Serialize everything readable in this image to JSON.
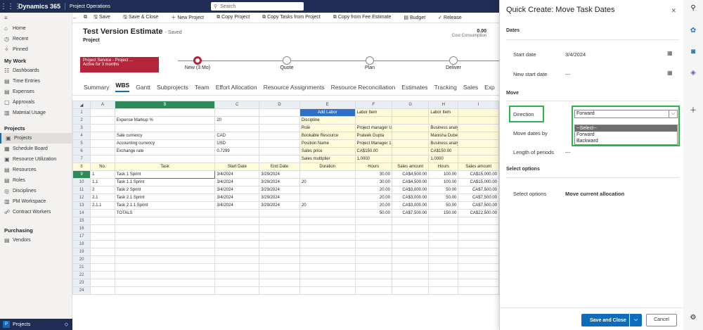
{
  "topbar": {
    "brand": "Dynamics 365",
    "app": "Project Operations",
    "search_placeholder": "Search"
  },
  "sidebar": {
    "top": [
      {
        "label": "Home"
      },
      {
        "label": "Recent"
      },
      {
        "label": "Pinned"
      }
    ],
    "groups": [
      {
        "heading": "My Work",
        "items": [
          "Dashboards",
          "Time Entries",
          "Expenses",
          "Approvals",
          "Material Usage"
        ]
      },
      {
        "heading": "Projects",
        "items": [
          "Projects",
          "Schedule Board",
          "Resource Utilization",
          "Resources",
          "Roles",
          "Disciplines",
          "PM Workspace",
          "Contract Workers"
        ]
      },
      {
        "heading": "Purchasing",
        "items": [
          "Vendors"
        ]
      }
    ],
    "area_switch": "Projects"
  },
  "toolbar": [
    "Save",
    "Save & Close",
    "New Project",
    "Copy Project",
    "Copy Tasks from Project",
    "Copy from Fee Estimate",
    "Budget",
    "Release"
  ],
  "record": {
    "title": "Test Version Estimate",
    "saved": "- Saved",
    "entity": "Project",
    "right_value": "0.00",
    "right_label": "Cost Consumption"
  },
  "bpf": {
    "active_name": "Project Service - Project ...",
    "active_sub": "Active for 3 months",
    "stages": [
      "New (3 Mo)",
      "Quote",
      "Plan",
      "Deliver"
    ]
  },
  "tabs": [
    "Summary",
    "WBS",
    "Gantt",
    "Subprojects",
    "Team",
    "Effort Allocation",
    "Resource Assignments",
    "Resource Reconciliation",
    "Estimates",
    "Tracking",
    "Sales",
    "Exp"
  ],
  "grid": {
    "cols": [
      "A",
      "B",
      "C",
      "D",
      "E",
      "F",
      "G",
      "H",
      "I"
    ],
    "rows": [
      {
        "n": "1",
        "c": [
          "",
          "",
          "",
          "",
          "Add Labor",
          "Labor Item",
          "",
          "Labor Item",
          ""
        ]
      },
      {
        "n": "2",
        "c": [
          "",
          "Expense Markup %",
          "20",
          "",
          "Discipline",
          "",
          "",
          "",
          ""
        ]
      },
      {
        "n": "3",
        "c": [
          "",
          "",
          "",
          "",
          "Role",
          "Project manager USSI",
          "",
          "Business analyst",
          ""
        ]
      },
      {
        "n": "4",
        "c": [
          "",
          "Sale currency",
          "CAD",
          "",
          "Bookable Resource",
          "Prateek Gupta",
          "",
          "Manisha Dubey",
          ""
        ]
      },
      {
        "n": "5",
        "c": [
          "",
          "Accounting currency",
          "USD",
          "",
          "Position Name",
          "Project Manager 1",
          "",
          "Business analyst",
          ""
        ]
      },
      {
        "n": "6",
        "c": [
          "",
          "Exchange rate",
          "0.7299",
          "",
          "Sales price",
          "CA$150.00",
          "",
          "CA$150.00",
          ""
        ]
      },
      {
        "n": "7",
        "c": [
          "",
          "",
          "",
          "",
          "Sales multiplier",
          "1.0000",
          "",
          "1.0000",
          ""
        ]
      },
      {
        "n": "8",
        "c": [
          "No.",
          "Task",
          "Start Date",
          "End Date",
          "Duration",
          "Hours",
          "Sales amount",
          "Hours",
          "Sales amount"
        ]
      },
      {
        "n": "9",
        "c": [
          "1",
          "Task 1 Sprint",
          "3/4/2024",
          "3/29/2024",
          "",
          "30.00",
          "CA$4,500.00",
          "100.00",
          "CA$15,000.00"
        ]
      },
      {
        "n": "10",
        "c": [
          "1.1",
          "Task 1.1 Sprint",
          "3/4/2024",
          "3/29/2024",
          "20",
          "30.00",
          "CA$4,500.00",
          "100.00",
          "CA$15,000.00"
        ]
      },
      {
        "n": "11",
        "c": [
          "2",
          "Task 2 Sprint",
          "3/4/2024",
          "3/29/2024",
          "",
          "20.00",
          "CA$3,000.00",
          "50.00",
          "CA$7,500.00"
        ]
      },
      {
        "n": "12",
        "c": [
          "2.1",
          "Task 2.1 Sprint",
          "3/4/2024",
          "3/29/2024",
          "",
          "20.00",
          "CA$3,000.00",
          "50.00",
          "CA$7,500.00"
        ]
      },
      {
        "n": "13",
        "c": [
          "2.1.1",
          "Task 2.1.1 Sprint",
          "3/4/2024",
          "3/29/2024",
          "20",
          "20.00",
          "CA$3,000.00",
          "50.00",
          "CA$7,500.00"
        ]
      },
      {
        "n": "14",
        "c": [
          "",
          "TOTALS",
          "",
          "",
          "",
          "50.00",
          "CA$7,500.00",
          "150.00",
          "CA$22,500.00"
        ]
      },
      {
        "n": "15",
        "c": [
          "",
          "",
          "",
          "",
          "",
          "",
          "",
          "",
          ""
        ]
      },
      {
        "n": "16",
        "c": [
          "",
          "",
          "",
          "",
          "",
          "",
          "",
          "",
          ""
        ]
      },
      {
        "n": "17",
        "c": [
          "",
          "",
          "",
          "",
          "",
          "",
          "",
          "",
          ""
        ]
      },
      {
        "n": "18",
        "c": [
          "",
          "",
          "",
          "",
          "",
          "",
          "",
          "",
          ""
        ]
      },
      {
        "n": "19",
        "c": [
          "",
          "",
          "",
          "",
          "",
          "",
          "",
          "",
          ""
        ]
      },
      {
        "n": "20",
        "c": [
          "",
          "",
          "",
          "",
          "",
          "",
          "",
          "",
          ""
        ]
      },
      {
        "n": "21",
        "c": [
          "",
          "",
          "",
          "",
          "",
          "",
          "",
          "",
          ""
        ]
      },
      {
        "n": "22",
        "c": [
          "",
          "",
          "",
          "",
          "",
          "",
          "",
          "",
          ""
        ]
      },
      {
        "n": "23",
        "c": [
          "",
          "",
          "",
          "",
          "",
          "",
          "",
          "",
          ""
        ]
      },
      {
        "n": "24",
        "c": [
          "",
          "",
          "",
          "",
          "",
          "",
          "",
          "",
          ""
        ]
      }
    ]
  },
  "panel": {
    "title": "Quick Create: Move Task Dates",
    "sec_dates": "Dates",
    "start_label": "Start date",
    "start_value": "3/4/2024",
    "new_start_label": "New start date",
    "new_start_value": "---",
    "sec_move": "Move",
    "direction_label": "Direction",
    "direction_value": "Forward",
    "move_by_label": "Move dates by",
    "length_label": "Length of periods",
    "length_value": "---",
    "options": [
      "--Select--",
      "Forward",
      "Backward"
    ],
    "sec_select": "Select options",
    "select_label": "Select options",
    "select_value": "Move current allocation",
    "save_close": "Save and Close",
    "cancel": "Cancel"
  }
}
